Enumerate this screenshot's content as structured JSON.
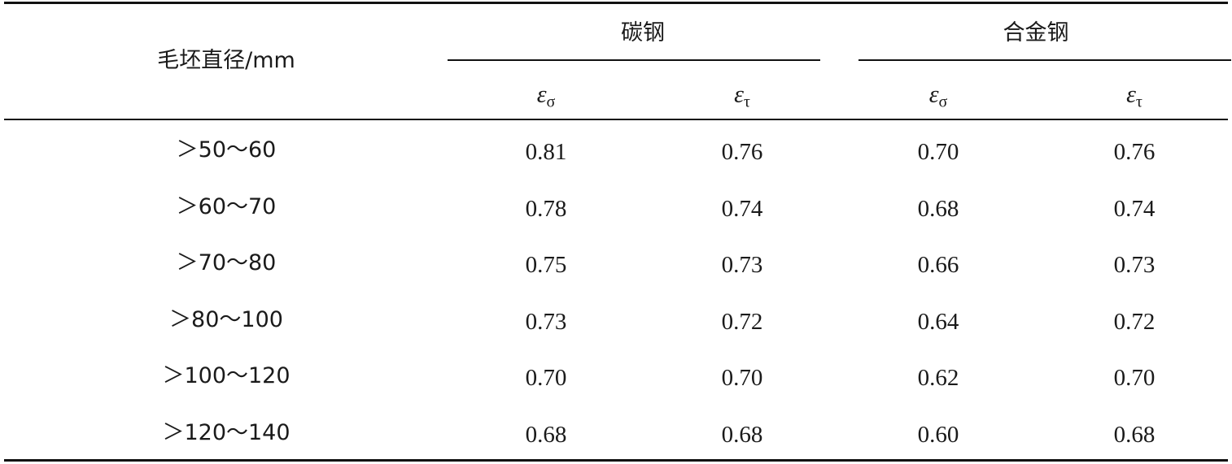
{
  "table": {
    "row_header": "毛坯直径/mm",
    "groups": [
      "碳钢",
      "合金钢"
    ],
    "sub_headers": [
      {
        "symbol": "ε",
        "subscript": "σ"
      },
      {
        "symbol": "ε",
        "subscript": "τ"
      },
      {
        "symbol": "ε",
        "subscript": "σ"
      },
      {
        "symbol": "ε",
        "subscript": "τ"
      }
    ],
    "rows": [
      {
        "range": "＞50～60",
        "values": [
          "0.81",
          "0.76",
          "0.70",
          "0.76"
        ]
      },
      {
        "range": "＞60～70",
        "values": [
          "0.78",
          "0.74",
          "0.68",
          "0.74"
        ]
      },
      {
        "range": "＞70～80",
        "values": [
          "0.75",
          "0.73",
          "0.66",
          "0.73"
        ]
      },
      {
        "range": "＞80～100",
        "values": [
          "0.73",
          "0.72",
          "0.64",
          "0.72"
        ]
      },
      {
        "range": "＞100～120",
        "values": [
          "0.70",
          "0.70",
          "0.62",
          "0.70"
        ]
      },
      {
        "range": "＞120～140",
        "values": [
          "0.68",
          "0.68",
          "0.60",
          "0.68"
        ]
      }
    ]
  }
}
